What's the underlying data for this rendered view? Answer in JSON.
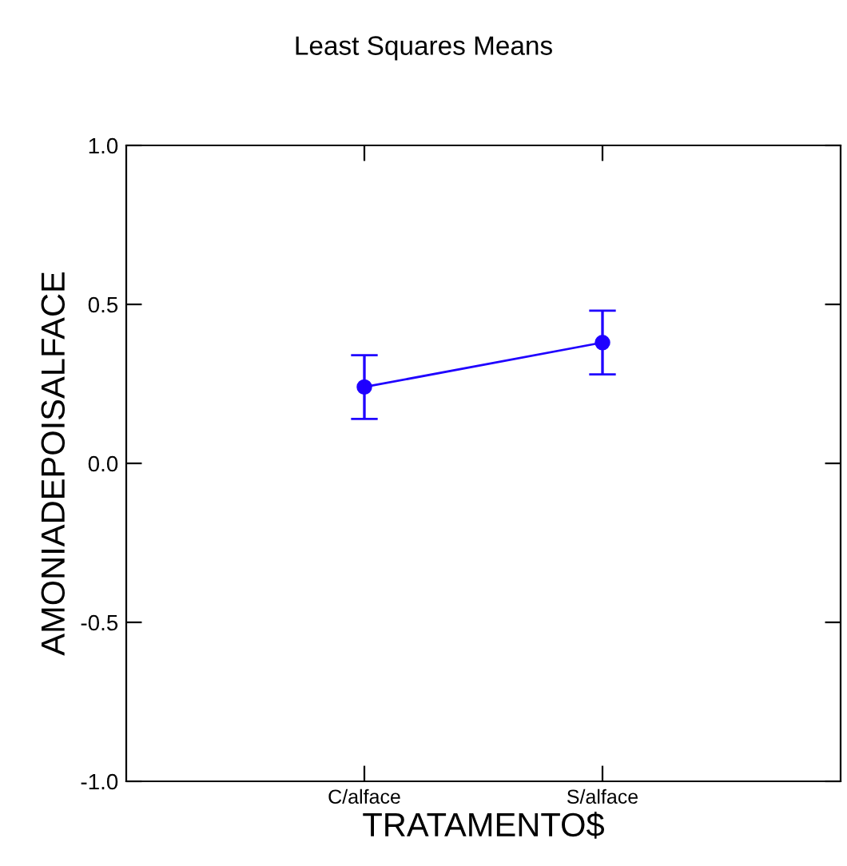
{
  "chart_data": {
    "type": "line",
    "title": "Least Squares Means",
    "xlabel": "TRATAMENTO$",
    "ylabel": "AMONIADEPOISALFACE",
    "categories": [
      "C/alface",
      "S/alface"
    ],
    "series": [
      {
        "color": "#1f00ff",
        "values": [
          0.24,
          0.38
        ],
        "errors": [
          0.1,
          0.1
        ]
      }
    ],
    "ylim": [
      -1.0,
      1.0
    ],
    "yticks": [
      {
        "value": -1.0,
        "label": "-1.0"
      },
      {
        "value": -0.5,
        "label": "-0.5"
      },
      {
        "value": 0.0,
        "label": "0.0"
      },
      {
        "value": 0.5,
        "label": "0.5"
      },
      {
        "value": 1.0,
        "label": "1.0"
      }
    ],
    "marker": "circle",
    "grid": false,
    "legend": false
  }
}
